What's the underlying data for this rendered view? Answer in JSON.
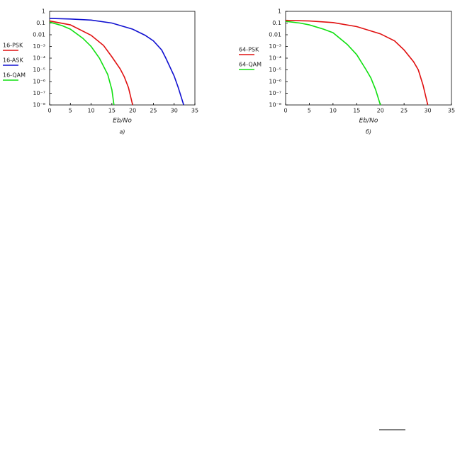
{
  "chart_data": [
    {
      "type": "line",
      "xlabel": "Eb/No",
      "caption": "a)",
      "xlim": [
        0,
        35
      ],
      "xticks": [
        0,
        5,
        10,
        15,
        20,
        25,
        30,
        35
      ],
      "ylim": [
        1e-08,
        1
      ],
      "yscale": "log",
      "yticks": [
        1,
        0.1,
        0.01,
        {
          "value": 0.001,
          "label": "10⁻³"
        },
        {
          "value": 0.0001,
          "label": "10⁻⁴"
        },
        {
          "value": 1e-05,
          "label": "10⁻⁵"
        },
        {
          "value": 1e-06,
          "label": "10⁻⁶"
        },
        {
          "value": 1e-07,
          "label": "10⁻⁷"
        },
        {
          "value": 1e-08,
          "label": "10⁻⁸"
        }
      ],
      "legend": "outside-left",
      "series": [
        {
          "name": "16-PSK",
          "color": "#e01010",
          "x": [
            0,
            5,
            10,
            13,
            15,
            17,
            18,
            19,
            20
          ],
          "values": [
            0.15,
            0.07,
            0.009,
            0.0012,
            0.00013,
            1.2e-05,
            2.5e-06,
            3e-07,
            1e-08
          ]
        },
        {
          "name": "16-ASK",
          "color": "#1010d0",
          "x": [
            0,
            5,
            10,
            15,
            20,
            23,
            25,
            27,
            28,
            30,
            31,
            32.3
          ],
          "values": [
            0.25,
            0.22,
            0.18,
            0.1,
            0.03,
            0.009,
            0.003,
            0.0005,
            0.0001,
            3e-06,
            3e-07,
            1e-08
          ]
        },
        {
          "name": "16-QAM",
          "color": "#10e010",
          "x": [
            0,
            3,
            5,
            8,
            10,
            12,
            14,
            15,
            15.5
          ],
          "values": [
            0.12,
            0.06,
            0.03,
            0.005,
            0.001,
            0.0001,
            4e-06,
            2e-07,
            1e-08
          ]
        }
      ]
    },
    {
      "type": "line",
      "xlabel": "Eb/No",
      "caption": "б)",
      "xlim": [
        0,
        35
      ],
      "xticks": [
        0,
        5,
        10,
        15,
        20,
        25,
        30,
        35
      ],
      "ylim": [
        1e-08,
        1
      ],
      "yscale": "log",
      "yticks": [
        1,
        0.1,
        0.01,
        {
          "value": 0.001,
          "label": "10⁻³"
        },
        {
          "value": 0.0001,
          "label": "10⁻⁴"
        },
        {
          "value": 1e-05,
          "label": "10⁻⁵"
        },
        {
          "value": 1e-06,
          "label": "10⁻⁶"
        },
        {
          "value": 1e-07,
          "label": "10⁻⁷"
        },
        {
          "value": 1e-08,
          "label": "10⁻⁸"
        }
      ],
      "legend": "outside-left",
      "series": [
        {
          "name": "64-PSK",
          "color": "#e01010",
          "x": [
            0,
            5,
            10,
            15,
            20,
            23,
            25,
            27,
            28,
            29,
            30
          ],
          "values": [
            0.17,
            0.15,
            0.11,
            0.05,
            0.012,
            0.003,
            0.0005,
            5e-05,
            1e-05,
            5e-07,
            1e-08
          ]
        },
        {
          "name": "64-QAM",
          "color": "#10e010",
          "x": [
            0,
            3,
            5,
            8,
            10,
            13,
            15,
            17,
            18,
            19,
            20
          ],
          "values": [
            0.14,
            0.1,
            0.07,
            0.03,
            0.015,
            0.0015,
            0.0002,
            1e-05,
            2e-06,
            2e-07,
            1e-08
          ]
        }
      ]
    }
  ]
}
